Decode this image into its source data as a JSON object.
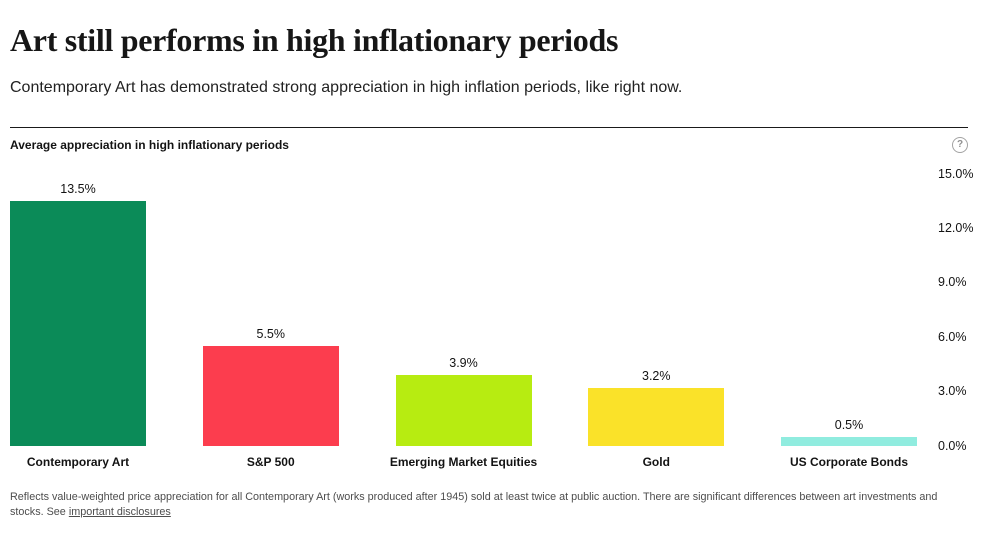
{
  "header": {
    "title": "Art still performs in high inflationary periods",
    "subtitle": "Contemporary Art has demonstrated strong appreciation in high inflation periods, like right now."
  },
  "icons": {
    "help_glyph": "?"
  },
  "chart_data": {
    "type": "bar",
    "title": "Average appreciation in high inflationary periods",
    "categories": [
      "Contemporary Art",
      "S&P 500",
      "Emerging Market Equities",
      "Gold",
      "US Corporate Bonds"
    ],
    "values": [
      13.5,
      5.5,
      3.9,
      3.2,
      0.5
    ],
    "value_labels": [
      "13.5%",
      "5.5%",
      "3.9%",
      "3.2%",
      "0.5%"
    ],
    "bar_colors": [
      "#0b8b58",
      "#fc3d4e",
      "#b7ec11",
      "#fae229",
      "#90ecdf"
    ],
    "xlabel": "",
    "ylabel": "",
    "ylim": [
      0,
      15
    ],
    "yticks": [
      15.0,
      12.0,
      9.0,
      6.0,
      3.0,
      0.0
    ],
    "ytick_labels": [
      "15.0%",
      "12.0%",
      "9.0%",
      "6.0%",
      "3.0%",
      "0.0%"
    ],
    "grid": false,
    "legend": false,
    "tick_side": "right"
  },
  "footer": {
    "text": "Reflects value-weighted price appreciation for all Contemporary Art (works produced after 1945) sold at least twice at public auction. There are significant differences between art investments and stocks. See",
    "link_label": "important disclosures"
  }
}
